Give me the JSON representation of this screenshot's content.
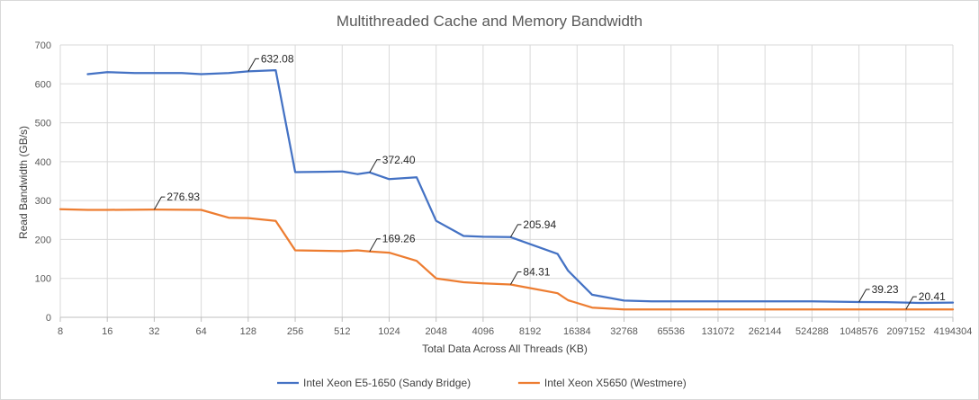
{
  "chart_data": {
    "type": "line",
    "title": "Multithreaded Cache and Memory Bandwidth",
    "xlabel": "Total Data Across All Threads (KB)",
    "ylabel": "Read Bandwidth (GB/s)",
    "xscale": "log2",
    "xlim": [
      8,
      4194304
    ],
    "ylim": [
      0,
      700
    ],
    "x_ticks": [
      8,
      16,
      32,
      64,
      128,
      256,
      512,
      1024,
      2048,
      4096,
      8192,
      16384,
      32768,
      65536,
      131072,
      262144,
      524288,
      1048576,
      2097152,
      4194304
    ],
    "x_tick_labels": [
      "8",
      "16",
      "32",
      "64",
      "128",
      "256",
      "512",
      "1024",
      "2048",
      "4096",
      "8192",
      "16384",
      "32768",
      "65536",
      "131072",
      "262144",
      "524288",
      "1048576",
      "2097152",
      "4194304"
    ],
    "y_ticks": [
      0,
      100,
      200,
      300,
      400,
      500,
      600,
      700
    ],
    "y_tick_labels": [
      "0",
      "100",
      "200",
      "300",
      "400",
      "500",
      "600",
      "700"
    ],
    "grid": true,
    "legend_position": "bottom",
    "series": [
      {
        "name": "Intel Xeon E5-1650 (Sandy Bridge)",
        "color": "#4472c4",
        "points": [
          [
            12,
            625
          ],
          [
            16,
            630
          ],
          [
            24,
            628
          ],
          [
            32,
            628
          ],
          [
            48,
            628
          ],
          [
            64,
            625
          ],
          [
            96,
            628
          ],
          [
            128,
            632.08
          ],
          [
            192,
            635
          ],
          [
            256,
            373
          ],
          [
            384,
            374
          ],
          [
            512,
            375
          ],
          [
            640,
            368
          ],
          [
            768,
            372.4
          ],
          [
            1024,
            355
          ],
          [
            1536,
            360
          ],
          [
            2048,
            248
          ],
          [
            3072,
            209
          ],
          [
            4096,
            207
          ],
          [
            6144,
            206
          ],
          [
            8192,
            188
          ],
          [
            12288,
            163
          ],
          [
            14336,
            120
          ],
          [
            20480,
            58
          ],
          [
            32768,
            43
          ],
          [
            49152,
            41
          ],
          [
            65536,
            41
          ],
          [
            131072,
            41
          ],
          [
            262144,
            41
          ],
          [
            524288,
            41
          ],
          [
            1048576,
            39.23
          ],
          [
            1572864,
            39
          ],
          [
            2621440,
            37
          ],
          [
            4194304,
            38
          ]
        ]
      },
      {
        "name": "Intel Xeon X5650 (Westmere)",
        "color": "#ed7d31",
        "points": [
          [
            8,
            278
          ],
          [
            12,
            276
          ],
          [
            16,
            276
          ],
          [
            32,
            276.93
          ],
          [
            64,
            276
          ],
          [
            96,
            256
          ],
          [
            128,
            255
          ],
          [
            192,
            248
          ],
          [
            256,
            172
          ],
          [
            384,
            171
          ],
          [
            512,
            170
          ],
          [
            640,
            172
          ],
          [
            768,
            169.26
          ],
          [
            1024,
            166
          ],
          [
            1536,
            145
          ],
          [
            2048,
            100
          ],
          [
            3072,
            90
          ],
          [
            4096,
            87
          ],
          [
            6144,
            84.31
          ],
          [
            8192,
            75
          ],
          [
            12288,
            62
          ],
          [
            14336,
            44
          ],
          [
            20480,
            25
          ],
          [
            32768,
            20
          ],
          [
            65536,
            20
          ],
          [
            131072,
            20
          ],
          [
            262144,
            20
          ],
          [
            524288,
            20
          ],
          [
            1048576,
            20
          ],
          [
            2097152,
            20.41
          ],
          [
            4194304,
            20
          ]
        ]
      }
    ],
    "annotations": [
      {
        "series": 0,
        "x": 128,
        "y": 632.08,
        "text": "632.08"
      },
      {
        "series": 0,
        "x": 768,
        "y": 372.4,
        "text": "372.40"
      },
      {
        "series": 0,
        "x": 6144,
        "y": 205.94,
        "text": "205.94"
      },
      {
        "series": 0,
        "x": 1048576,
        "y": 39.23,
        "text": "39.23"
      },
      {
        "series": 1,
        "x": 32,
        "y": 276.93,
        "text": "276.93"
      },
      {
        "series": 1,
        "x": 768,
        "y": 169.26,
        "text": "169.26"
      },
      {
        "series": 1,
        "x": 6144,
        "y": 84.31,
        "text": "84.31"
      },
      {
        "series": 1,
        "x": 2097152,
        "y": 20.41,
        "text": "20.41"
      }
    ]
  }
}
